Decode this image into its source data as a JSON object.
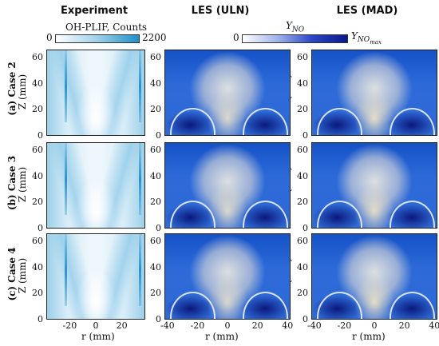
{
  "columns": {
    "experiment": "Experiment",
    "uln": "LES (ULN)",
    "mad": "LES (MAD)"
  },
  "colorbars": {
    "experiment": {
      "label": "OH-PLIF, Counts",
      "min": "0",
      "max": "2200",
      "color_low": "#ffffff",
      "color_high": "#1f8fc7"
    },
    "les": {
      "label_main": "Y",
      "label_sub": "NO",
      "min": "0",
      "max_main": "Y",
      "max_sub": "NO",
      "max_subsub": "max",
      "color_low": "#ffffff",
      "color_high": "#0a1a8c"
    }
  },
  "rows": [
    {
      "label": "(a) Case 2"
    },
    {
      "label": "(b) Case 3"
    },
    {
      "label": "(c) Case 4"
    }
  ],
  "axes": {
    "zlabel": "Z (mm)",
    "xlabel": "r (mm)",
    "z_ticks": [
      "60",
      "40",
      "20",
      "0"
    ],
    "x_ticks_exp": [
      "-20",
      "0",
      "20"
    ],
    "x_ticks_les": [
      "-40",
      "-20",
      "0",
      "20",
      "40"
    ]
  }
}
